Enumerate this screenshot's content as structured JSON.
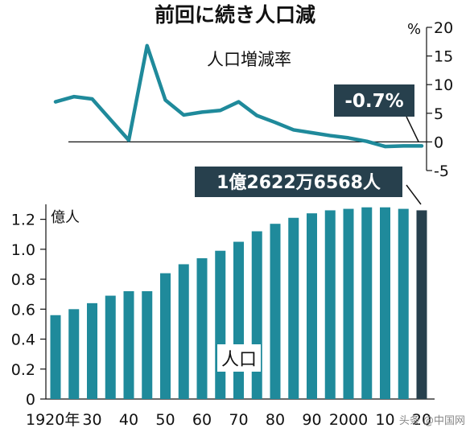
{
  "title": "前回に続き人口減",
  "watermark": "头条 @中国网",
  "chart_data": [
    {
      "type": "line",
      "title": "人口増減率",
      "ylabel": "%",
      "ylim": [
        -5,
        20
      ],
      "yticks": [
        -5,
        0,
        5,
        10,
        15,
        20
      ],
      "color": "#1f8a9b",
      "callout": "-0.7%",
      "x": [
        1920,
        1925,
        1930,
        1935,
        1940,
        1945,
        1950,
        1955,
        1960,
        1965,
        1970,
        1975,
        1980,
        1985,
        1990,
        1995,
        2000,
        2005,
        2010,
        2015,
        2020
      ],
      "values": [
        7.0,
        7.9,
        7.5,
        null,
        0.3,
        16.8,
        7.3,
        4.7,
        5.2,
        5.5,
        7.0,
        4.6,
        3.4,
        2.1,
        1.6,
        1.1,
        0.7,
        0.1,
        -0.8,
        -0.7,
        -0.7
      ]
    },
    {
      "type": "bar",
      "unit_label": "億人",
      "series_label": "人口",
      "ylim": [
        0,
        1.3
      ],
      "yticks": [
        0,
        0.2,
        0.4,
        0.6,
        0.8,
        1.0,
        1.2
      ],
      "ytick_labels": [
        "0",
        "0.2",
        "0.4",
        "0.6",
        "0.8",
        "1.0",
        "1.2"
      ],
      "color": "#1f8a9b",
      "highlight_color": "#27404d",
      "callout": "1億2622万6568人",
      "categories": [
        1920,
        1925,
        1930,
        1935,
        1940,
        1945,
        1950,
        1955,
        1960,
        1965,
        1970,
        1975,
        1980,
        1985,
        1990,
        1995,
        2000,
        2005,
        2010,
        2015,
        2020
      ],
      "values": [
        0.56,
        0.6,
        0.64,
        0.69,
        0.72,
        0.72,
        0.84,
        0.9,
        0.94,
        0.99,
        1.05,
        1.12,
        1.17,
        1.21,
        1.24,
        1.26,
        1.27,
        1.28,
        1.28,
        1.27,
        1.26
      ],
      "xtick_labels": [
        "1920年",
        "30",
        "40",
        "50",
        "60",
        "70",
        "80",
        "90",
        "2000",
        "10",
        "20"
      ]
    }
  ]
}
